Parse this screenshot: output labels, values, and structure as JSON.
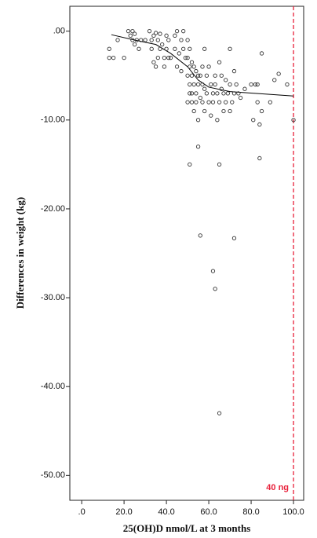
{
  "chart_data": {
    "type": "scatter",
    "x_label": "25(OH)D nmol/L at 3 months",
    "y_label": "Differences in weight (kg)",
    "xlim": [
      -5.6,
      104.8
    ],
    "ylim": [
      -52.8,
      2.8
    ],
    "xticks": [
      {
        "value": 0,
        "label": ".0"
      },
      {
        "value": 20,
        "label": "20.0"
      },
      {
        "value": 40,
        "label": "40.0"
      },
      {
        "value": 60,
        "label": "60.0"
      },
      {
        "value": 80,
        "label": "80.0"
      },
      {
        "value": 100,
        "label": "100.0"
      }
    ],
    "yticks": [
      {
        "value": 0,
        "label": ".00"
      },
      {
        "value": -10,
        "label": "-10.00"
      },
      {
        "value": -20,
        "label": "-20.00"
      },
      {
        "value": -30,
        "label": "-30.00"
      },
      {
        "value": -40,
        "label": "-40.00"
      },
      {
        "value": -50,
        "label": "-50.00"
      }
    ],
    "color": "#333333",
    "x": [
      13,
      13,
      15,
      17,
      20,
      22,
      23,
      24,
      24,
      25,
      25,
      26,
      27,
      28,
      30,
      32,
      33,
      33,
      34,
      34,
      35,
      35,
      36,
      36,
      37,
      37,
      38,
      39,
      39,
      40,
      40,
      41,
      41,
      42,
      44,
      44,
      45,
      45,
      46,
      47,
      47,
      48,
      48,
      49,
      50,
      50,
      50,
      50,
      51,
      51,
      51,
      51,
      52,
      52,
      52,
      52,
      53,
      53,
      53,
      54,
      54,
      54,
      55,
      55,
      55,
      55,
      56,
      56,
      57,
      57,
      57,
      58,
      58,
      58,
      59,
      59,
      60,
      60,
      61,
      61,
      62,
      62,
      63,
      63,
      64,
      64,
      65,
      65,
      66,
      66,
      67,
      67,
      68,
      68,
      69,
      70,
      70,
      70,
      71,
      72,
      72,
      73,
      74,
      75,
      77,
      80,
      81,
      82,
      83,
      83,
      84,
      84,
      85,
      85,
      89,
      91,
      93,
      97,
      100,
      51,
      65,
      56,
      72,
      62,
      63,
      65
    ],
    "values": [
      -2,
      -3,
      -3,
      -1,
      -3,
      0,
      -0.5,
      0,
      -1,
      -0.3,
      -1.5,
      -1,
      -2,
      -1,
      -1,
      0,
      -1,
      -2,
      -0.5,
      -3.5,
      -4,
      -0.2,
      -1,
      -3,
      -2,
      -0.3,
      -1.5,
      -3,
      -4,
      -0.5,
      -2,
      -1,
      -3,
      -3,
      -0.5,
      -2,
      0,
      -4,
      -2.5,
      -1,
      -4.5,
      0,
      -2,
      -3,
      -1,
      -3,
      -5,
      -8,
      -2,
      -4,
      -6,
      -7,
      -3.5,
      -5,
      -7,
      -8,
      -4,
      -6,
      -9,
      -4.5,
      -7,
      -8,
      -5,
      -6,
      -10,
      -13,
      -5,
      -7.5,
      -4,
      -6,
      -8,
      -2,
      -6.5,
      -9,
      -5,
      -7,
      -4,
      -8,
      -6,
      -9.5,
      -7,
      -8,
      -5,
      -6,
      -7,
      -10,
      -3.5,
      -8,
      -5,
      -6.5,
      -7,
      -9,
      -8,
      -5.5,
      -7,
      -2,
      -6,
      -9,
      -8,
      -7,
      -4.5,
      -6,
      -7,
      -7.5,
      -6.5,
      -6,
      -10,
      -6,
      -6,
      -8,
      -10.5,
      -14.3,
      -2.5,
      -9,
      -8,
      -5.5,
      -4.8,
      -6,
      -10,
      -15,
      -15,
      -23,
      -23.3,
      -27,
      -29,
      -43
    ],
    "fit_line": {
      "color": "#000000",
      "x": [
        14,
        25,
        35,
        42,
        50,
        55,
        60,
        70,
        100
      ],
      "values": [
        -0.4,
        -1,
        -1.5,
        -2.5,
        -4,
        -5.5,
        -6.3,
        -6.8,
        -7.3
      ]
    },
    "reference_line": {
      "x": 100,
      "label": "40 ng",
      "color": "#e8203a"
    }
  }
}
